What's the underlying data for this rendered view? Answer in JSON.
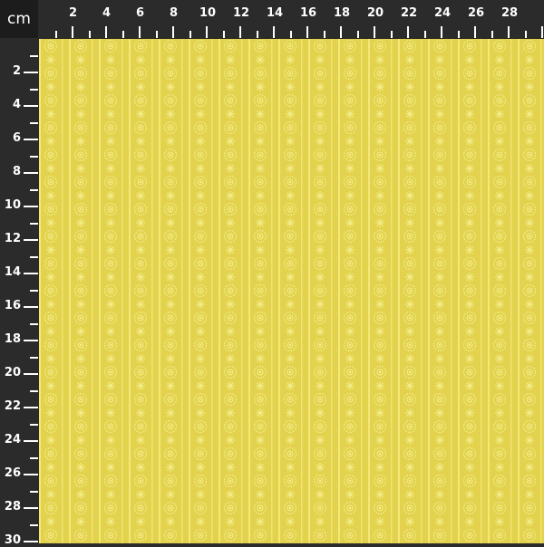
{
  "unit_label": "cm",
  "top_ruler_labels": [
    "2",
    "4",
    "6",
    "8",
    "10",
    "12",
    "14",
    "16",
    "18",
    "20",
    "22",
    "24",
    "26",
    "28"
  ],
  "left_ruler_labels": [
    "2",
    "4",
    "6",
    "8",
    "10",
    "12",
    "14",
    "16",
    "18",
    "20",
    "22",
    "24",
    "26",
    "28",
    "30"
  ],
  "colors": {
    "fabric_base": "#e2d24e",
    "motif": "#f6ee8a",
    "ruler_bg": "#2b2b2b"
  },
  "motif_icons": [
    "dotted-circle-icon",
    "star-flower-icon"
  ]
}
